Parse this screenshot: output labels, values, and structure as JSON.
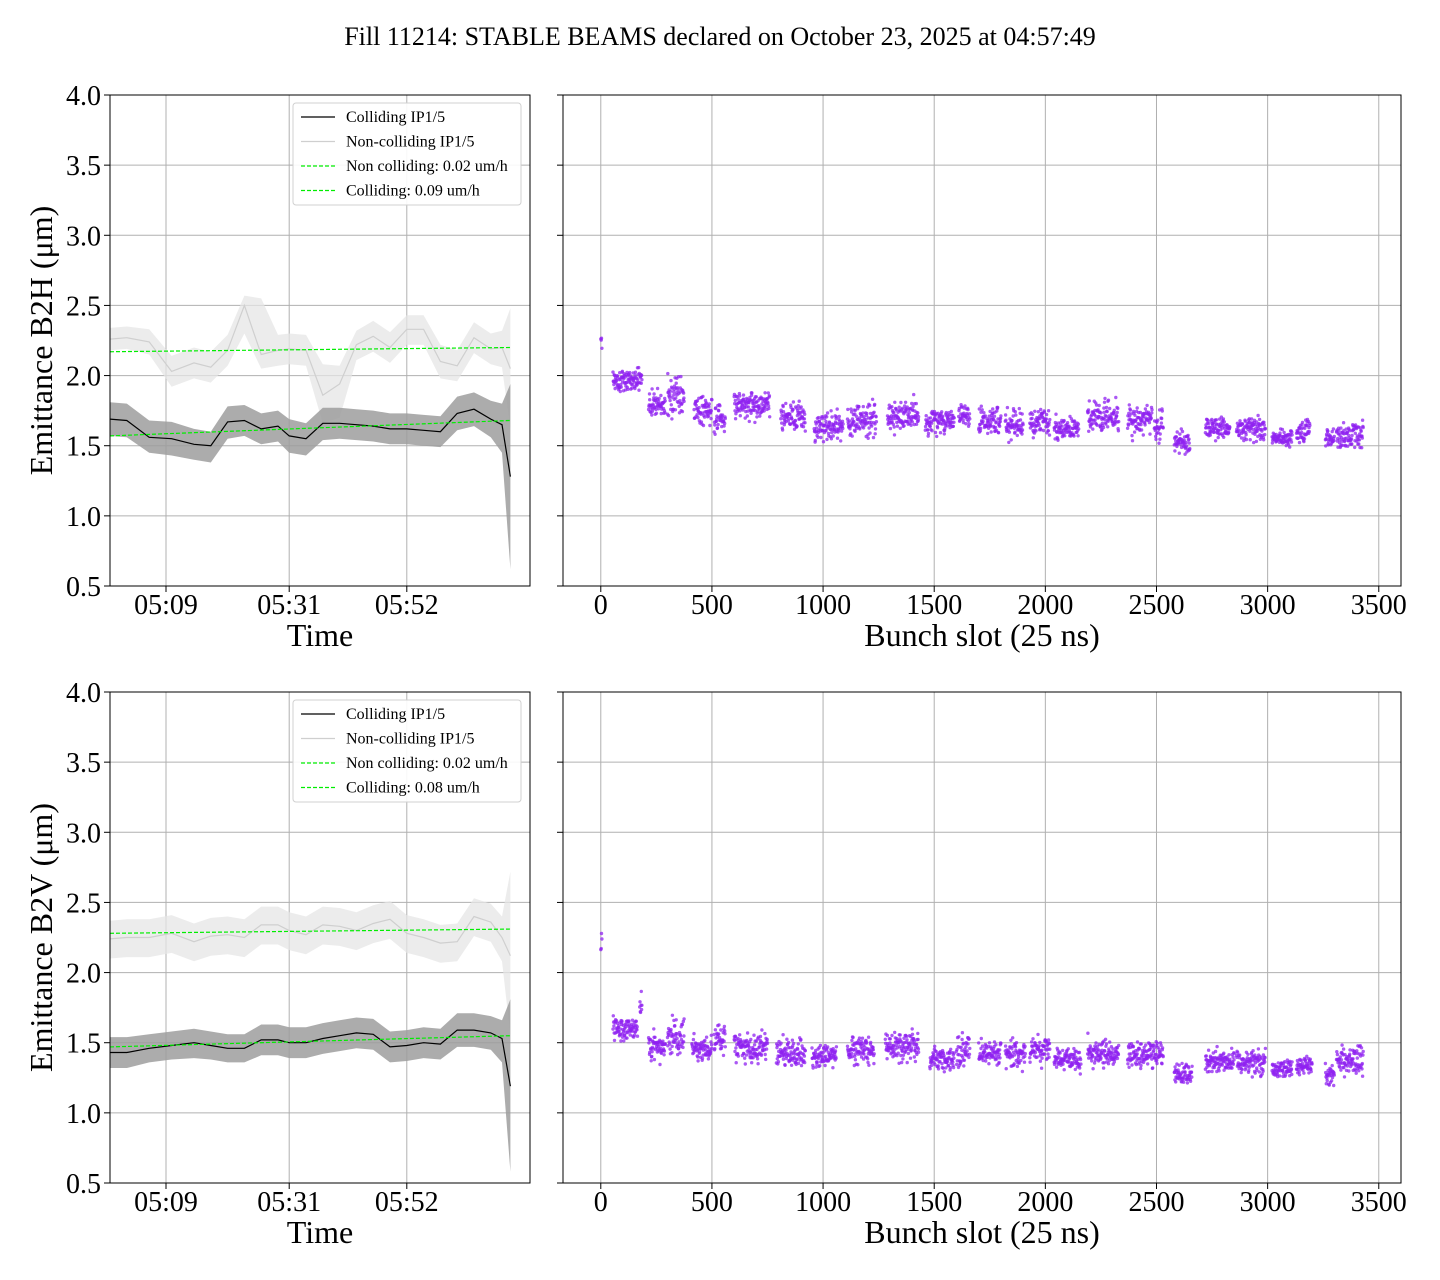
{
  "figure": {
    "title": "Fill 11214: STABLE BEAMS declared on October 23, 2025 at 04:57:49"
  },
  "colors": {
    "colliding": "#000000",
    "colliding_band": "#9e9e9e",
    "noncolliding": "#cfcfcf",
    "noncolliding_band": "#e6e6e6",
    "fit": "#00ee00",
    "scatter": "#8f22f0",
    "grid": "#b0b0b0"
  },
  "chart_data": [
    {
      "id": "b2h_time",
      "type": "line",
      "xlabel": "Time",
      "ylabel": "Emittance B2H (μm)",
      "ylim": [
        0.5,
        4.0
      ],
      "yticks": [
        "0.5",
        "1.0",
        "1.5",
        "2.0",
        "2.5",
        "3.0",
        "3.5",
        "4.0"
      ],
      "xlim": [
        0,
        75
      ],
      "xticks": [
        {
          "label": "05:09",
          "x": 10
        },
        {
          "label": "05:31",
          "x": 32
        },
        {
          "label": "05:52",
          "x": 53
        }
      ],
      "grid": true,
      "legend_position": "top-right",
      "legend": [
        "Colliding IP1/5",
        "Non-colliding IP1/5",
        "Non colliding: 0.02 um/h",
        "Colliding: 0.09 um/h"
      ],
      "series": [
        {
          "name": "Colliding IP1/5",
          "x": [
            0,
            3,
            7,
            11,
            15,
            18,
            21,
            24,
            27,
            30,
            32,
            35,
            38,
            41,
            44,
            47,
            50,
            53,
            56,
            59,
            62,
            65,
            68,
            70,
            71.5
          ],
          "y": [
            1.69,
            1.68,
            1.56,
            1.55,
            1.51,
            1.5,
            1.67,
            1.68,
            1.62,
            1.64,
            1.57,
            1.55,
            1.66,
            1.66,
            1.65,
            1.64,
            1.62,
            1.62,
            1.61,
            1.6,
            1.73,
            1.76,
            1.69,
            1.65,
            1.28
          ],
          "band_upper": [
            1.81,
            1.8,
            1.68,
            1.67,
            1.62,
            1.6,
            1.78,
            1.79,
            1.73,
            1.75,
            1.69,
            1.66,
            1.77,
            1.77,
            1.76,
            1.75,
            1.73,
            1.73,
            1.72,
            1.71,
            1.85,
            1.88,
            1.82,
            1.8,
            1.94
          ],
          "band_lower": [
            1.57,
            1.56,
            1.45,
            1.43,
            1.4,
            1.38,
            1.55,
            1.57,
            1.51,
            1.53,
            1.45,
            1.43,
            1.54,
            1.55,
            1.54,
            1.53,
            1.51,
            1.51,
            1.5,
            1.49,
            1.61,
            1.64,
            1.56,
            1.45,
            0.62
          ]
        },
        {
          "name": "Non-colliding IP1/5",
          "x": [
            0,
            3,
            7,
            11,
            15,
            18,
            21,
            24,
            27,
            30,
            32,
            35,
            38,
            41,
            44,
            47,
            50,
            53,
            56,
            59,
            62,
            65,
            68,
            70,
            71.5
          ],
          "y": [
            2.26,
            2.27,
            2.24,
            2.03,
            2.09,
            2.06,
            2.18,
            2.5,
            2.15,
            2.18,
            2.19,
            2.18,
            1.86,
            1.94,
            2.22,
            2.28,
            2.2,
            2.33,
            2.33,
            2.1,
            2.07,
            2.27,
            2.19,
            2.2,
            2.05
          ],
          "band_upper": [
            2.34,
            2.35,
            2.33,
            2.14,
            2.2,
            2.17,
            2.29,
            2.57,
            2.55,
            2.29,
            2.3,
            2.29,
            2.08,
            2.07,
            2.32,
            2.39,
            2.31,
            2.43,
            2.43,
            2.22,
            2.18,
            2.38,
            2.3,
            2.32,
            2.48
          ],
          "band_lower": [
            2.18,
            2.19,
            2.15,
            1.92,
            1.98,
            1.95,
            2.07,
            2.3,
            2.05,
            2.07,
            2.08,
            2.07,
            1.66,
            1.7,
            2.11,
            2.17,
            2.09,
            2.22,
            2.22,
            1.98,
            1.96,
            2.16,
            2.08,
            2.06,
            1.62
          ]
        },
        {
          "name": "Non colliding: 0.02 um/h",
          "fit": true,
          "x": [
            0,
            71.5
          ],
          "y": [
            2.17,
            2.2
          ]
        },
        {
          "name": "Colliding: 0.09 um/h",
          "fit": true,
          "x": [
            0,
            71.5
          ],
          "y": [
            1.57,
            1.68
          ]
        }
      ]
    },
    {
      "id": "b2h_bunch",
      "type": "scatter",
      "xlabel": "Bunch slot (25 ns)",
      "ylabel": "",
      "ylim": [
        0.5,
        4.0
      ],
      "xlim": [
        -170,
        3600
      ],
      "xticks": [
        0,
        500,
        1000,
        1500,
        2000,
        2500,
        3000,
        3500
      ],
      "grid": true,
      "trains": [
        {
          "start": 0,
          "end": 5,
          "mean": 2.24,
          "spread": 0.08
        },
        {
          "start": 55,
          "end": 185,
          "mean": 1.97,
          "spread": 0.07
        },
        {
          "start": 215,
          "end": 290,
          "mean": 1.8,
          "spread": 0.08
        },
        {
          "start": 300,
          "end": 375,
          "mean": 1.86,
          "spread": 0.13
        },
        {
          "start": 420,
          "end": 500,
          "mean": 1.76,
          "spread": 0.07
        },
        {
          "start": 510,
          "end": 560,
          "mean": 1.71,
          "spread": 0.09
        },
        {
          "start": 600,
          "end": 760,
          "mean": 1.79,
          "spread": 0.07
        },
        {
          "start": 810,
          "end": 920,
          "mean": 1.71,
          "spread": 0.08
        },
        {
          "start": 960,
          "end": 1090,
          "mean": 1.63,
          "spread": 0.08
        },
        {
          "start": 1110,
          "end": 1240,
          "mean": 1.68,
          "spread": 0.09
        },
        {
          "start": 1290,
          "end": 1430,
          "mean": 1.72,
          "spread": 0.08
        },
        {
          "start": 1460,
          "end": 1590,
          "mean": 1.68,
          "spread": 0.07
        },
        {
          "start": 1610,
          "end": 1660,
          "mean": 1.72,
          "spread": 0.07
        },
        {
          "start": 1700,
          "end": 1800,
          "mean": 1.68,
          "spread": 0.08
        },
        {
          "start": 1820,
          "end": 1900,
          "mean": 1.64,
          "spread": 0.08
        },
        {
          "start": 1930,
          "end": 2020,
          "mean": 1.66,
          "spread": 0.08
        },
        {
          "start": 2040,
          "end": 2150,
          "mean": 1.62,
          "spread": 0.06
        },
        {
          "start": 2190,
          "end": 2330,
          "mean": 1.71,
          "spread": 0.09
        },
        {
          "start": 2370,
          "end": 2480,
          "mean": 1.68,
          "spread": 0.09
        },
        {
          "start": 2490,
          "end": 2530,
          "mean": 1.62,
          "spread": 0.1
        },
        {
          "start": 2580,
          "end": 2650,
          "mean": 1.53,
          "spread": 0.07
        },
        {
          "start": 2720,
          "end": 2830,
          "mean": 1.62,
          "spread": 0.06
        },
        {
          "start": 2860,
          "end": 2990,
          "mean": 1.62,
          "spread": 0.07
        },
        {
          "start": 3020,
          "end": 3110,
          "mean": 1.56,
          "spread": 0.05
        },
        {
          "start": 3130,
          "end": 3190,
          "mean": 1.61,
          "spread": 0.07
        },
        {
          "start": 3260,
          "end": 3300,
          "mean": 1.55,
          "spread": 0.06
        },
        {
          "start": 3310,
          "end": 3430,
          "mean": 1.57,
          "spread": 0.07
        }
      ]
    },
    {
      "id": "b2v_time",
      "type": "line",
      "xlabel": "Time",
      "ylabel": "Emittance B2V (μm)",
      "ylim": [
        0.5,
        4.0
      ],
      "yticks": [
        "0.5",
        "1.0",
        "1.5",
        "2.0",
        "2.5",
        "3.0",
        "3.5",
        "4.0"
      ],
      "xlim": [
        0,
        75
      ],
      "xticks": [
        {
          "label": "05:09",
          "x": 10
        },
        {
          "label": "05:31",
          "x": 32
        },
        {
          "label": "05:52",
          "x": 53
        }
      ],
      "grid": true,
      "legend_position": "top-right",
      "legend": [
        "Colliding IP1/5",
        "Non-colliding IP1/5",
        "Non colliding: 0.02 um/h",
        "Colliding: 0.08 um/h"
      ],
      "series": [
        {
          "name": "Colliding IP1/5",
          "x": [
            0,
            3,
            7,
            11,
            15,
            18,
            21,
            24,
            27,
            30,
            32,
            35,
            38,
            41,
            44,
            47,
            50,
            53,
            56,
            59,
            62,
            65,
            68,
            70,
            71.5
          ],
          "y": [
            1.43,
            1.43,
            1.46,
            1.48,
            1.5,
            1.48,
            1.46,
            1.46,
            1.52,
            1.52,
            1.5,
            1.5,
            1.53,
            1.55,
            1.57,
            1.56,
            1.47,
            1.48,
            1.5,
            1.49,
            1.59,
            1.59,
            1.57,
            1.53,
            1.19
          ],
          "band_upper": [
            1.54,
            1.54,
            1.56,
            1.58,
            1.6,
            1.58,
            1.56,
            1.56,
            1.63,
            1.63,
            1.61,
            1.61,
            1.64,
            1.66,
            1.68,
            1.67,
            1.58,
            1.59,
            1.61,
            1.6,
            1.71,
            1.71,
            1.69,
            1.66,
            1.81
          ],
          "band_lower": [
            1.32,
            1.32,
            1.36,
            1.38,
            1.39,
            1.38,
            1.36,
            1.36,
            1.41,
            1.41,
            1.39,
            1.39,
            1.42,
            1.44,
            1.46,
            1.45,
            1.36,
            1.37,
            1.39,
            1.38,
            1.47,
            1.47,
            1.45,
            1.36,
            0.58
          ]
        },
        {
          "name": "Non-colliding IP1/5",
          "x": [
            0,
            3,
            7,
            11,
            15,
            18,
            21,
            24,
            27,
            30,
            32,
            35,
            38,
            41,
            44,
            47,
            50,
            53,
            56,
            59,
            62,
            65,
            68,
            70,
            71.5
          ],
          "y": [
            2.24,
            2.25,
            2.25,
            2.28,
            2.22,
            2.26,
            2.27,
            2.25,
            2.34,
            2.34,
            2.3,
            2.27,
            2.34,
            2.33,
            2.3,
            2.35,
            2.38,
            2.28,
            2.25,
            2.21,
            2.22,
            2.4,
            2.36,
            2.25,
            2.12
          ],
          "band_upper": [
            2.37,
            2.38,
            2.38,
            2.41,
            2.35,
            2.39,
            2.4,
            2.38,
            2.47,
            2.47,
            2.43,
            2.4,
            2.47,
            2.46,
            2.43,
            2.48,
            2.51,
            2.41,
            2.38,
            2.34,
            2.35,
            2.53,
            2.49,
            2.4,
            2.72
          ],
          "band_lower": [
            2.1,
            2.11,
            2.11,
            2.14,
            2.08,
            2.12,
            2.13,
            2.11,
            2.2,
            2.2,
            2.16,
            2.13,
            2.2,
            2.19,
            2.16,
            2.21,
            2.24,
            2.14,
            2.11,
            2.07,
            2.08,
            2.26,
            2.22,
            2.08,
            1.55
          ]
        },
        {
          "name": "Non colliding: 0.02 um/h",
          "fit": true,
          "x": [
            0,
            71.5
          ],
          "y": [
            2.28,
            2.31
          ]
        },
        {
          "name": "Colliding: 0.08 um/h",
          "fit": true,
          "x": [
            0,
            71.5
          ],
          "y": [
            1.47,
            1.55
          ]
        }
      ]
    },
    {
      "id": "b2v_bunch",
      "type": "scatter",
      "xlabel": "Bunch slot (25 ns)",
      "ylabel": "",
      "ylim": [
        0.5,
        4.0
      ],
      "xlim": [
        -170,
        3600
      ],
      "xticks": [
        0,
        500,
        1000,
        1500,
        2000,
        2500,
        3000,
        3500
      ],
      "grid": true,
      "trains": [
        {
          "start": 0,
          "end": 5,
          "mean": 2.22,
          "spread": 0.15
        },
        {
          "start": 55,
          "end": 165,
          "mean": 1.6,
          "spread": 0.07
        },
        {
          "start": 175,
          "end": 185,
          "mean": 1.78,
          "spread": 0.06
        },
        {
          "start": 215,
          "end": 290,
          "mean": 1.48,
          "spread": 0.07
        },
        {
          "start": 300,
          "end": 375,
          "mean": 1.55,
          "spread": 0.11
        },
        {
          "start": 410,
          "end": 500,
          "mean": 1.45,
          "spread": 0.07
        },
        {
          "start": 510,
          "end": 560,
          "mean": 1.52,
          "spread": 0.09
        },
        {
          "start": 600,
          "end": 750,
          "mean": 1.46,
          "spread": 0.08
        },
        {
          "start": 790,
          "end": 920,
          "mean": 1.43,
          "spread": 0.08
        },
        {
          "start": 950,
          "end": 1060,
          "mean": 1.4,
          "spread": 0.06
        },
        {
          "start": 1110,
          "end": 1230,
          "mean": 1.44,
          "spread": 0.08
        },
        {
          "start": 1280,
          "end": 1430,
          "mean": 1.47,
          "spread": 0.09
        },
        {
          "start": 1480,
          "end": 1590,
          "mean": 1.38,
          "spread": 0.06
        },
        {
          "start": 1600,
          "end": 1660,
          "mean": 1.44,
          "spread": 0.08
        },
        {
          "start": 1700,
          "end": 1800,
          "mean": 1.42,
          "spread": 0.07
        },
        {
          "start": 1820,
          "end": 1910,
          "mean": 1.42,
          "spread": 0.08
        },
        {
          "start": 1930,
          "end": 2020,
          "mean": 1.45,
          "spread": 0.08
        },
        {
          "start": 2040,
          "end": 2160,
          "mean": 1.37,
          "spread": 0.06
        },
        {
          "start": 2190,
          "end": 2330,
          "mean": 1.43,
          "spread": 0.08
        },
        {
          "start": 2370,
          "end": 2530,
          "mean": 1.42,
          "spread": 0.08
        },
        {
          "start": 2580,
          "end": 2660,
          "mean": 1.28,
          "spread": 0.07
        },
        {
          "start": 2720,
          "end": 2850,
          "mean": 1.37,
          "spread": 0.06
        },
        {
          "start": 2860,
          "end": 2990,
          "mean": 1.36,
          "spread": 0.07
        },
        {
          "start": 3020,
          "end": 3110,
          "mean": 1.31,
          "spread": 0.05
        },
        {
          "start": 3130,
          "end": 3200,
          "mean": 1.34,
          "spread": 0.06
        },
        {
          "start": 3260,
          "end": 3300,
          "mean": 1.28,
          "spread": 0.06
        },
        {
          "start": 3310,
          "end": 3430,
          "mean": 1.37,
          "spread": 0.08
        }
      ]
    }
  ]
}
